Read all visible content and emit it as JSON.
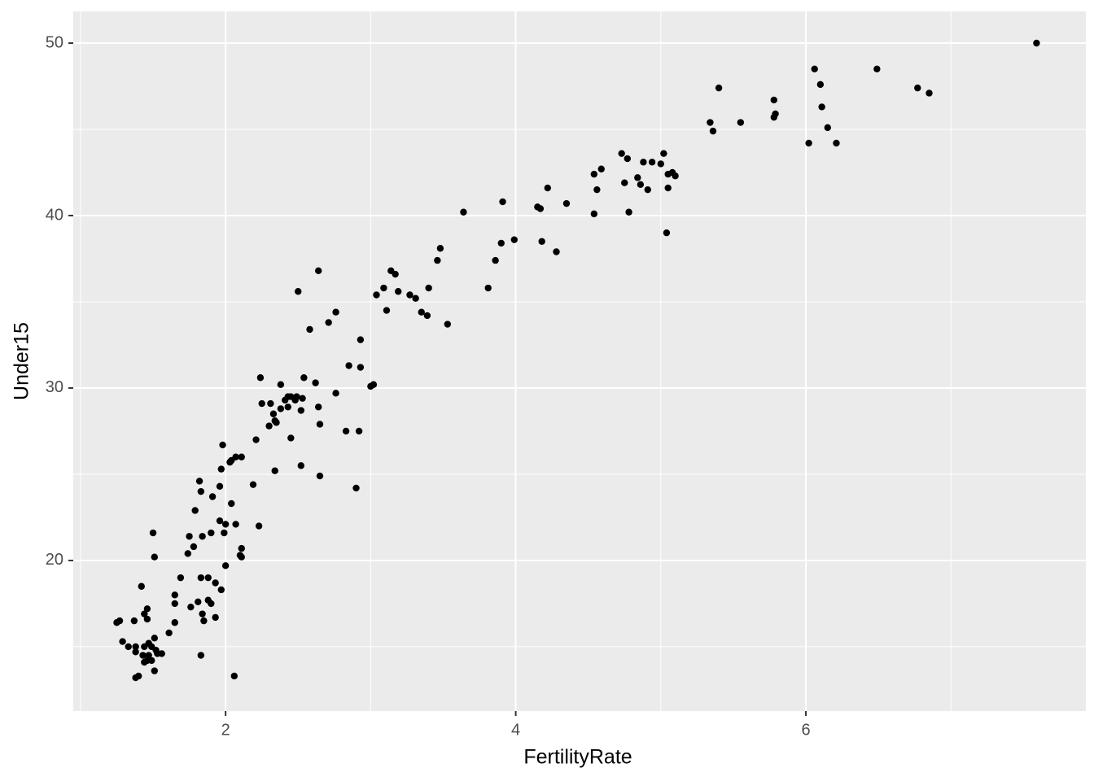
{
  "chart_data": {
    "type": "scatter",
    "x_label": "FertilityRate",
    "y_label": "Under15",
    "x": [
      7.59,
      6.85,
      6.77,
      6.49,
      6.06,
      6.1,
      6.11,
      6.15,
      6.02,
      6.21,
      5.78,
      5.79,
      5.78,
      5.55,
      5.4,
      5.34,
      5.36,
      5.02,
      5.0,
      4.94,
      4.88,
      4.84,
      4.86,
      4.91,
      5.05,
      5.08,
      5.1,
      5.05,
      5.04,
      4.73,
      4.77,
      4.75,
      4.78,
      4.59,
      4.54,
      4.56,
      4.54,
      4.22,
      4.35,
      4.15,
      4.17,
      4.18,
      4.28,
      3.91,
      3.99,
      3.9,
      3.86,
      3.81,
      3.64,
      3.48,
      3.46,
      3.4,
      3.53,
      3.35,
      3.39,
      3.14,
      3.17,
      3.19,
      3.27,
      3.31,
      3.04,
      3.09,
      3.11,
      2.93,
      2.93,
      2.85,
      3.02,
      3.0,
      2.76,
      2.64,
      2.5,
      2.58,
      2.76,
      2.71,
      2.62,
      2.54,
      2.64,
      2.65,
      2.83,
      2.92,
      2.9,
      2.65,
      2.52,
      2.34,
      2.45,
      2.24,
      2.38,
      2.25,
      2.31,
      2.33,
      2.3,
      2.34,
      2.35,
      2.38,
      2.41,
      2.43,
      2.45,
      2.43,
      2.48,
      2.49,
      2.52,
      2.53,
      2.21,
      2.19,
      2.23,
      2.11,
      2.07,
      2.04,
      2.03,
      1.98,
      1.97,
      1.96,
      1.91,
      2.04,
      1.82,
      1.83,
      1.79,
      1.96,
      2.0,
      1.99,
      2.07,
      2.11,
      2.1,
      2.11,
      1.9,
      1.75,
      1.84,
      1.78,
      1.74,
      2.0,
      1.69,
      1.83,
      1.88,
      1.93,
      1.97,
      1.65,
      1.65,
      1.81,
      1.88,
      1.9,
      1.76,
      1.84,
      1.93,
      1.85,
      1.65,
      1.61,
      1.83,
      2.06,
      1.5,
      1.51,
      1.42,
      1.46,
      1.44,
      1.46,
      1.37,
      1.27,
      1.25,
      1.51,
      1.56,
      1.47,
      1.29,
      1.33,
      1.38,
      1.38,
      1.44,
      1.49,
      1.47,
      1.43,
      1.46,
      1.49,
      1.52,
      1.44,
      1.51,
      1.38,
      1.4,
      1.53
    ],
    "values": [
      50.0,
      47.1,
      47.4,
      48.5,
      48.5,
      47.6,
      46.3,
      45.1,
      44.2,
      44.2,
      46.7,
      45.9,
      45.7,
      45.4,
      47.4,
      45.4,
      44.9,
      43.6,
      43.0,
      43.1,
      43.1,
      42.2,
      41.8,
      41.5,
      42.4,
      42.5,
      42.3,
      41.6,
      39.0,
      43.6,
      43.3,
      41.9,
      40.2,
      42.7,
      42.4,
      41.5,
      40.1,
      41.6,
      40.7,
      40.5,
      40.4,
      38.5,
      37.9,
      40.8,
      38.6,
      38.4,
      37.4,
      35.8,
      40.2,
      38.1,
      37.4,
      35.8,
      33.7,
      34.4,
      34.2,
      36.8,
      36.6,
      35.6,
      35.4,
      35.2,
      35.4,
      35.8,
      34.5,
      32.8,
      31.2,
      31.3,
      30.2,
      30.1,
      29.7,
      36.8,
      35.6,
      33.4,
      34.4,
      33.8,
      30.3,
      30.6,
      28.9,
      27.9,
      27.5,
      27.5,
      24.2,
      24.9,
      25.5,
      25.2,
      27.1,
      30.6,
      30.2,
      29.1,
      29.1,
      28.5,
      27.8,
      28.1,
      28.0,
      28.8,
      29.3,
      29.5,
      29.5,
      28.9,
      29.3,
      29.5,
      28.7,
      29.4,
      27.0,
      24.4,
      22.0,
      26.0,
      26.0,
      25.8,
      25.7,
      26.7,
      25.3,
      24.3,
      23.7,
      23.3,
      24.6,
      24.0,
      22.9,
      22.3,
      22.1,
      21.6,
      22.1,
      20.7,
      20.3,
      20.2,
      21.6,
      21.4,
      21.4,
      20.8,
      20.4,
      19.7,
      19.0,
      19.0,
      19.0,
      18.7,
      18.3,
      18.0,
      17.5,
      17.6,
      17.7,
      17.5,
      17.3,
      16.9,
      16.7,
      16.5,
      16.4,
      15.8,
      14.5,
      13.3,
      21.6,
      20.2,
      18.5,
      17.2,
      16.9,
      16.6,
      16.5,
      16.5,
      16.4,
      15.5,
      14.6,
      15.2,
      15.3,
      15.0,
      15.0,
      14.7,
      15.0,
      15.0,
      14.5,
      14.5,
      14.2,
      14.2,
      14.8,
      14.1,
      13.6,
      13.2,
      13.3,
      14.6
    ],
    "color": "#000000",
    "xlim": [
      0.95,
      7.93
    ],
    "ylim": [
      11.27,
      51.84
    ],
    "xticks": [
      2,
      4,
      6
    ],
    "yticks": [
      20,
      30,
      40,
      50
    ],
    "xminor": [
      1,
      3,
      5,
      7
    ],
    "yminor": [
      15,
      25,
      35,
      45
    ],
    "grid": true
  }
}
